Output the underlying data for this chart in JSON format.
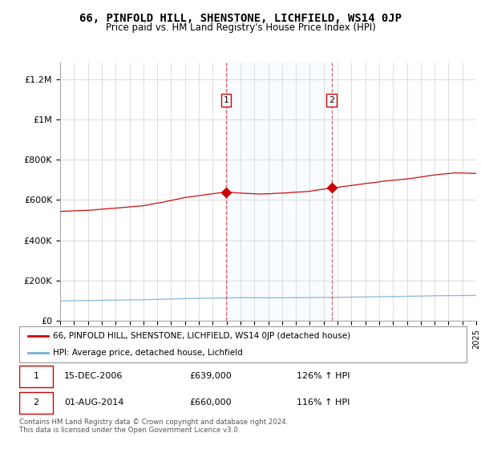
{
  "title": "66, PINFOLD HILL, SHENSTONE, LICHFIELD, WS14 0JP",
  "subtitle": "Price paid vs. HM Land Registry's House Price Index (HPI)",
  "background_color": "#ffffff",
  "plot_bg_color": "#ffffff",
  "grid_color": "#cccccc",
  "ylabel_ticks": [
    "£0",
    "£200K",
    "£400K",
    "£600K",
    "£800K",
    "£1M",
    "£1.2M"
  ],
  "ytick_values": [
    0,
    200000,
    400000,
    600000,
    800000,
    1000000,
    1200000
  ],
  "ymax": 1280000,
  "x_start_year": 1995,
  "x_end_year": 2025,
  "sale1_date": 2006.96,
  "sale1_price": 639000,
  "sale1_label": "1",
  "sale2_date": 2014.58,
  "sale2_price": 660000,
  "sale2_label": "2",
  "red_line_color": "#cc0000",
  "blue_line_color": "#7bafd4",
  "shade_color": "#ddeeff",
  "legend_red_label": "66, PINFOLD HILL, SHENSTONE, LICHFIELD, WS14 0JP (detached house)",
  "legend_blue_label": "HPI: Average price, detached house, Lichfield",
  "annotation1_date": "15-DEC-2006",
  "annotation1_price": "£639,000",
  "annotation1_hpi": "126% ↑ HPI",
  "annotation2_date": "01-AUG-2014",
  "annotation2_price": "£660,000",
  "annotation2_hpi": "116% ↑ HPI",
  "footer": "Contains HM Land Registry data © Crown copyright and database right 2024.\nThis data is licensed under the Open Government Licence v3.0."
}
